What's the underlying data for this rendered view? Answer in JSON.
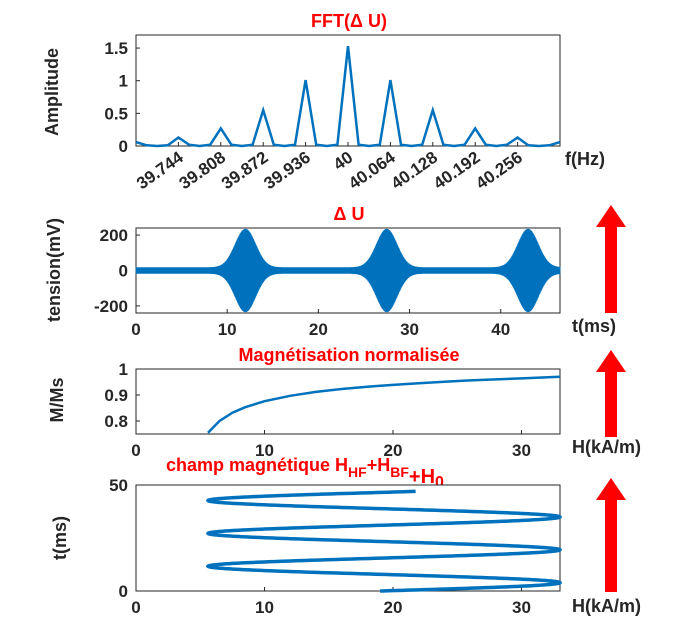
{
  "accent_color": "#ff0000",
  "line_color": "#0072bd",
  "chart_data": [
    {
      "id": "fft",
      "type": "line",
      "title": "FFT(Δ U)",
      "xlabel": "f(Hz)",
      "ylabel": "Amplitude",
      "xlim": [
        39.68,
        40.32
      ],
      "ylim": [
        0,
        1.7
      ],
      "xticks": [
        "39.744",
        "39.808",
        "39.872",
        "39.936",
        "40",
        "40.064",
        "40.128",
        "40.192",
        "40.256"
      ],
      "yticks": [
        "0",
        "0.5",
        "1",
        "1.5"
      ],
      "x": [
        39.68,
        39.696,
        39.712,
        39.728,
        39.744,
        39.76,
        39.776,
        39.792,
        39.808,
        39.824,
        39.84,
        39.856,
        39.872,
        39.888,
        39.904,
        39.92,
        39.936,
        39.952,
        39.968,
        39.984,
        40.0,
        40.016,
        40.032,
        40.048,
        40.064,
        40.08,
        40.096,
        40.112,
        40.128,
        40.144,
        40.16,
        40.176,
        40.192,
        40.208,
        40.224,
        40.24,
        40.256,
        40.272,
        40.288,
        40.304,
        40.32
      ],
      "y": [
        0.06,
        0.01,
        0.0,
        0.01,
        0.13,
        0.02,
        0.0,
        0.02,
        0.27,
        0.02,
        0.0,
        0.02,
        0.55,
        0.02,
        0.0,
        0.02,
        1.01,
        0.02,
        0.0,
        0.02,
        1.53,
        0.02,
        0.0,
        0.02,
        1.01,
        0.02,
        0.0,
        0.02,
        0.55,
        0.02,
        0.0,
        0.02,
        0.27,
        0.02,
        0.0,
        0.02,
        0.13,
        0.01,
        0.0,
        0.01,
        0.06
      ]
    },
    {
      "id": "tension",
      "type": "line",
      "title": "Δ U",
      "xlabel": "t(ms)",
      "ylabel": "tension(mV)",
      "xlim": [
        0,
        46.5
      ],
      "ylim": [
        -240,
        240
      ],
      "xticks": [
        "0",
        "10",
        "20",
        "30",
        "40"
      ],
      "yticks": [
        "-200",
        "0",
        "200"
      ],
      "envelope_peaks_ms": [
        12,
        27.5,
        43
      ],
      "peak_amplitude_mV": 235,
      "base_amplitude_mV": 18
    },
    {
      "id": "magnetisation",
      "type": "line",
      "title": "Magnétisation normalisée",
      "xlabel": "H(kA/m)",
      "ylabel": "M/Ms",
      "xlim": [
        0,
        33
      ],
      "ylim": [
        0.75,
        1.0
      ],
      "xticks": [
        "0",
        "10",
        "20",
        "30"
      ],
      "yticks": [
        "0.8",
        "0.9",
        "1"
      ],
      "x": [
        5.6,
        6.5,
        7.5,
        8.5,
        10,
        12,
        14,
        16,
        18,
        20,
        22,
        24,
        26,
        28,
        30,
        33
      ],
      "y": [
        0.755,
        0.8,
        0.832,
        0.853,
        0.876,
        0.897,
        0.912,
        0.923,
        0.932,
        0.939,
        0.945,
        0.951,
        0.956,
        0.96,
        0.964,
        0.97
      ]
    },
    {
      "id": "champ",
      "type": "line",
      "title_main": "champ magnétique H",
      "title_sub1": "HF",
      "title_plus1": "+H",
      "title_sub2": "BF",
      "title_plus2": "+H",
      "title_sub3": "0",
      "xlabel": "H(kA/m)",
      "ylabel": "t(ms)",
      "xlim": [
        0,
        33
      ],
      "ylim": [
        0,
        50
      ],
      "xticks": [
        "0",
        "10",
        "20",
        "30"
      ],
      "yticks": [
        "0",
        "50"
      ],
      "h_min": 5.6,
      "h_max": 33,
      "h_start": 19,
      "t_end": 47,
      "period_ms": 15.5
    }
  ]
}
